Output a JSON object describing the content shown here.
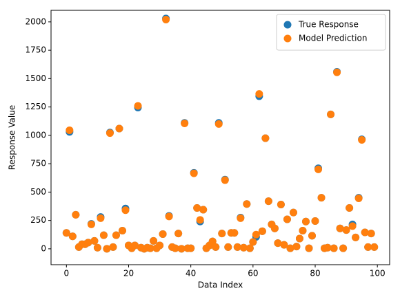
{
  "chart_data": {
    "type": "scatter",
    "x_label": "Data Index",
    "y_label": "Response Value",
    "x": [
      0,
      1,
      2,
      3,
      4,
      5,
      6,
      7,
      8,
      9,
      10,
      11,
      12,
      13,
      14,
      15,
      16,
      17,
      18,
      19,
      20,
      21,
      22,
      23,
      24,
      25,
      26,
      27,
      28,
      29,
      30,
      31,
      32,
      33,
      34,
      35,
      36,
      37,
      38,
      39,
      40,
      41,
      42,
      43,
      44,
      45,
      46,
      47,
      48,
      49,
      50,
      51,
      52,
      53,
      54,
      55,
      56,
      57,
      58,
      59,
      60,
      61,
      62,
      63,
      64,
      65,
      66,
      67,
      68,
      69,
      70,
      71,
      72,
      73,
      74,
      75,
      76,
      77,
      78,
      79,
      80,
      81,
      82,
      83,
      84,
      85,
      86,
      87,
      88,
      89,
      90,
      91,
      92,
      93,
      94,
      95,
      96,
      97,
      98,
      99
    ],
    "series": [
      {
        "name": "True Response",
        "color": "#1f77b4",
        "values": [
          140,
          1030,
          110,
          300,
          15,
          40,
          40,
          55,
          220,
          70,
          10,
          280,
          120,
          0,
          1025,
          15,
          120,
          1060,
          160,
          355,
          30,
          5,
          30,
          1245,
          10,
          0,
          10,
          5,
          70,
          5,
          30,
          130,
          2030,
          290,
          15,
          5,
          135,
          0,
          1110,
          5,
          5,
          670,
          360,
          240,
          345,
          5,
          30,
          65,
          15,
          1110,
          135,
          610,
          15,
          140,
          140,
          15,
          275,
          10,
          395,
          5,
          60,
          105,
          1345,
          155,
          975,
          420,
          215,
          180,
          50,
          390,
          35,
          260,
          5,
          320,
          20,
          90,
          160,
          240,
          5,
          115,
          245,
          710,
          450,
          5,
          10,
          1185,
          5,
          1560,
          180,
          5,
          165,
          360,
          215,
          100,
          450,
          965,
          145,
          15,
          135,
          15
        ]
      },
      {
        "name": "Model Prediction",
        "color": "#ff7f0e",
        "values": [
          140,
          1045,
          110,
          300,
          15,
          40,
          40,
          55,
          215,
          70,
          10,
          270,
          120,
          0,
          1020,
          15,
          120,
          1060,
          160,
          340,
          30,
          5,
          30,
          1260,
          10,
          0,
          10,
          5,
          70,
          5,
          30,
          130,
          2020,
          285,
          15,
          5,
          135,
          0,
          1105,
          5,
          5,
          665,
          360,
          255,
          345,
          5,
          30,
          65,
          15,
          1100,
          135,
          605,
          15,
          140,
          140,
          15,
          270,
          10,
          395,
          5,
          60,
          125,
          1365,
          155,
          975,
          420,
          215,
          180,
          50,
          390,
          35,
          260,
          5,
          320,
          20,
          90,
          160,
          240,
          5,
          115,
          245,
          700,
          450,
          5,
          10,
          1185,
          5,
          1555,
          180,
          5,
          165,
          360,
          200,
          100,
          445,
          960,
          145,
          15,
          135,
          15
        ]
      }
    ],
    "xlim": [
      -4.95,
      103.95
    ],
    "xticks": [
      0,
      20,
      40,
      60,
      80,
      100
    ],
    "ylim": [
      -140,
      2102
    ],
    "yticks": [
      0,
      250,
      500,
      750,
      1000,
      1250,
      1500,
      1750,
      2000
    ],
    "legend": "upper right",
    "grid": false
  }
}
